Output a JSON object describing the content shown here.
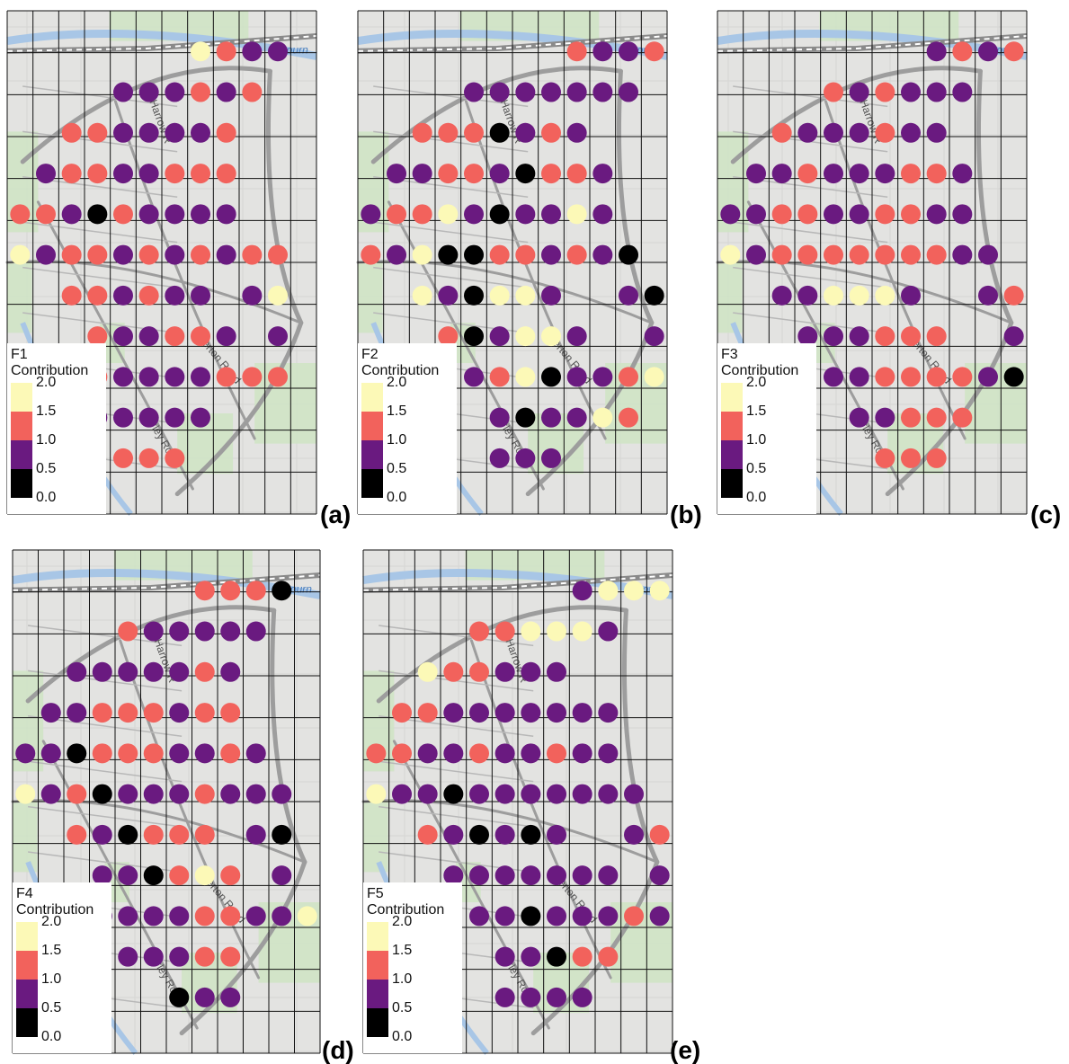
{
  "legend_title": "Contribution",
  "legend_ticks": [
    "2.0",
    "1.5",
    "1.0",
    "0.5",
    "0.0"
  ],
  "legend_bins": [
    {
      "range": "1.5–2.0",
      "color": "#fcf9b7"
    },
    {
      "range": "1.0–1.5",
      "color": "#f2625c"
    },
    {
      "range": "0.5–1.0",
      "color": "#6a1a80"
    },
    {
      "range": "0.0–0.5",
      "color": "#000000"
    }
  ],
  "street_labels": [
    "Harrow R",
    "Tiverton Road",
    "Harley Road"
  ],
  "river_label": "Bourn",
  "panels": [
    {
      "factor": "F1",
      "tag": "(a)",
      "grid": [
        ".......YRPP",
        "....PPPRPR.",
        "..RRPPPPR..",
        ".PRRPPRRR..",
        "RRPKRPPPP..",
        "YPRRPRPRPRR",
        "..RRPRPP.PY",
        "...RPPRRP.P",
        "..RRPPPPRRR",
        "..RPPPPP...",
        "....RRR...."
      ]
    },
    {
      "factor": "F2",
      "tag": "(b)",
      "grid": [
        "........RPPR",
        "....PPPPPPP.",
        "..RRRKPRP...",
        ".PPRRPKRRP..",
        "PRRYPKPPYP..",
        "RPYKKRRPRPK.",
        "..YPKYYP..PK",
        "...RKPYYP..P",
        "....PRYKPPRY",
        ".....PKPPYR.",
        ".....PPP...."
      ]
    },
    {
      "factor": "F3",
      "tag": "(c)",
      "grid": [
        "........PRPR",
        "....RPRPPP..",
        "..RPPPRPP...",
        ".PPRPPPRRP..",
        "PPRRPPRRPP..",
        "YPRRRRRRRPP.",
        "..PPYYYP..PR",
        "...PPPRRR..P",
        "....PPRRRRPK",
        ".....PPRRR..",
        "......RRR..."
      ]
    },
    {
      "factor": "F4",
      "tag": "(d)",
      "grid": [
        ".......RRRK",
        "....RPPPPP.",
        "..PPPPPRP..",
        ".PPRRRPRR..",
        "PPKRRRPPRP.",
        "YPRKPPPRPPP",
        "..RPKRRR.PK",
        "...PPKRYR.P",
        "...PPPPRRPPY",
        "....PPPRR..",
        "......KPP.."
      ]
    },
    {
      "factor": "F5",
      "tag": "(e)",
      "grid": [
        "........PYYY",
        "....RRYYYP..",
        "..YRRPPP....",
        ".RRPPPPPPP..",
        "RRPPRPPRPP..",
        "YPPKPPPPPPP.",
        "..RPKPKP..PR",
        "...PPPPPPP.P",
        "....PPKPPPRP",
        ".....PPKRR..",
        ".....PPPP..."
      ]
    }
  ]
}
